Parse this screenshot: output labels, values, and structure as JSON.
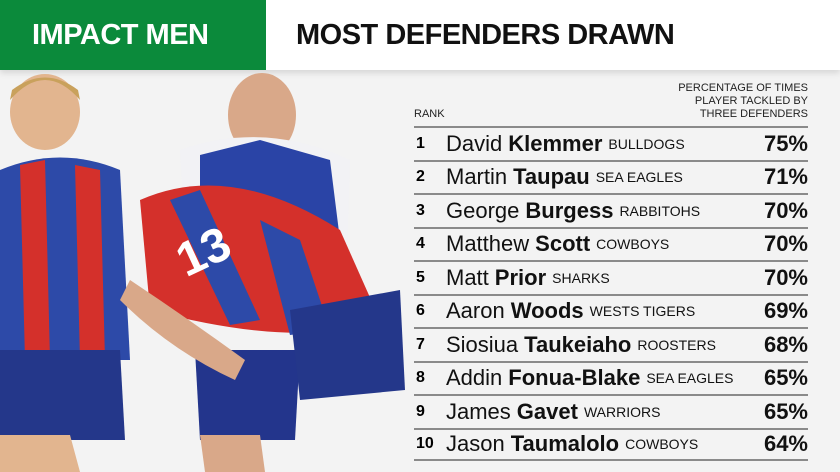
{
  "header": {
    "tag": "IMPACT MEN",
    "title": "MOST DEFENDERS DRAWN"
  },
  "colors": {
    "brand_green": "#0b8a3b"
  },
  "table": {
    "rank_label": "RANK",
    "value_label_lines": [
      "PERCENTAGE OF TIMES",
      "PLAYER TACKLED BY",
      "THREE DEFENDERS"
    ],
    "rows": [
      {
        "rank": "1",
        "first": "David",
        "last": "Klemmer",
        "team": "BULLDOGS",
        "pct": "75%"
      },
      {
        "rank": "2",
        "first": "Martin",
        "last": "Taupau",
        "team": "SEA EAGLES",
        "pct": "71%"
      },
      {
        "rank": "3",
        "first": "George",
        "last": "Burgess",
        "team": "RABBITOHS",
        "pct": "70%"
      },
      {
        "rank": "4",
        "first": "Matthew",
        "last": "Scott",
        "team": "COWBOYS",
        "pct": "70%"
      },
      {
        "rank": "5",
        "first": "Matt",
        "last": "Prior",
        "team": "SHARKS",
        "pct": "70%"
      },
      {
        "rank": "6",
        "first": "Aaron",
        "last": "Woods",
        "team": "WESTS TIGERS",
        "pct": "69%"
      },
      {
        "rank": "7",
        "first": "Siosiua",
        "last": "Taukeiaho",
        "team": "ROOSTERS",
        "pct": "68%"
      },
      {
        "rank": "8",
        "first": "Addin",
        "last": "Fonua-Blake",
        "team": "SEA EAGLES",
        "pct": "65%"
      },
      {
        "rank": "9",
        "first": "James",
        "last": "Gavet",
        "team": "WARRIORS",
        "pct": "65%"
      },
      {
        "rank": "10",
        "first": "Jason",
        "last": "Taumalolo",
        "team": "COWBOYS",
        "pct": "64%"
      }
    ]
  }
}
